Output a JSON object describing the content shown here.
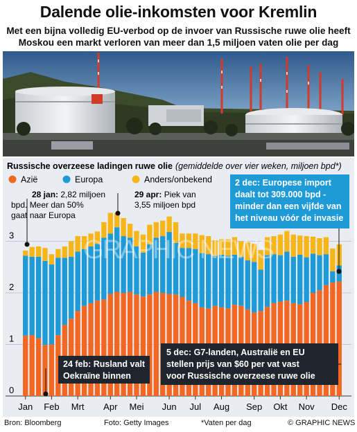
{
  "header": {
    "title": "Dalende olie-inkomsten voor Kremlin",
    "subtitle_line1": "Met een bijna volledig EU-verbod op de invoer van Russische ruwe olie heeft",
    "subtitle_line2": "Moskou een markt verloren van meer dan 1,5 miljoen vaten olie per dag"
  },
  "watermark": "GRAPHIC NEWS",
  "colors": {
    "asia": "#f26722",
    "europe": "#1e9ad6",
    "other": "#f7b618",
    "panel": "#e9ecf2",
    "callout": "#20242c"
  },
  "annotations": {
    "jan28_bold": "28 jan:",
    "jan28_l1": " 2,82 miljoen",
    "jan28_l2": "bpd. Meer dan 50%",
    "jan28_l3": "gaat naar Europa",
    "apr29_bold": "29 apr:",
    "apr29_l1": " Piek van",
    "apr29_l2": "3,55 miljoen bpd",
    "dec2_l1": "2 dec: Europese import",
    "dec2_l2": "daalt tot 309.000 bpd -",
    "dec2_l3": "minder dan een vijfde van",
    "dec2_l4": "het niveau vóór de invasie",
    "feb24_l1": "24 feb: Rusland valt",
    "feb24_l2": "Oekraïne binnen",
    "dec5_l1": "5 dec: G7-landen, Australië en EU",
    "dec5_l2": "stellen prijs van $60 per vat vast",
    "dec5_l3": "voor Russische overzeese ruwe olie"
  },
  "footer": {
    "source": "Bron: Bloomberg",
    "photo": "Foto: Getty Images",
    "note": "*Vaten per dag",
    "credit": "© GRAPHIC NEWS"
  },
  "chart_data": {
    "type": "bar",
    "stacked": true,
    "title": "Russische overzeese ladingen ruwe olie",
    "title_note": "(gemiddelde over vier weken, miljoen bpd*)",
    "legend_position": "top",
    "ylim": [
      0,
      4
    ],
    "y_ticks": [
      0,
      1,
      2,
      3
    ],
    "x_tick_labels": [
      "Jan",
      "Feb",
      "Mrt",
      "Apr",
      "Mei",
      "Jun",
      "Jul",
      "Aug",
      "Sep",
      "Okt",
      "Nov",
      "Dec"
    ],
    "x_tick_bar_index": [
      0,
      4,
      8,
      13,
      17,
      22,
      26,
      30,
      35,
      39,
      43,
      48
    ],
    "grid": true,
    "series": [
      {
        "name": "Azië",
        "color": "#f26722",
        "values": [
          1.17,
          1.18,
          1.12,
          0.99,
          1.0,
          1.18,
          1.38,
          1.5,
          1.65,
          1.75,
          1.8,
          1.85,
          1.87,
          1.98,
          2.02,
          2.0,
          2.02,
          1.97,
          1.93,
          1.97,
          2.02,
          2.0,
          1.98,
          1.97,
          1.92,
          1.85,
          1.8,
          1.72,
          1.7,
          1.75,
          1.72,
          1.7,
          1.77,
          1.75,
          1.68,
          1.62,
          1.65,
          1.73,
          1.8,
          1.83,
          1.85,
          1.8,
          1.78,
          1.82,
          2.0,
          2.05,
          2.15,
          2.2,
          2.22
        ]
      },
      {
        "name": "Europa",
        "color": "#1e9ad6",
        "values": [
          1.55,
          1.52,
          1.58,
          1.63,
          1.55,
          1.5,
          1.3,
          1.2,
          1.15,
          1.1,
          1.1,
          1.1,
          1.2,
          1.17,
          1.25,
          1.1,
          1.05,
          0.93,
          0.85,
          0.97,
          1.05,
          1.1,
          1.2,
          1.0,
          0.95,
          1.02,
          1.05,
          1.05,
          1.05,
          0.97,
          1.02,
          1.02,
          0.97,
          0.95,
          0.95,
          0.98,
          0.8,
          1.0,
          0.95,
          0.9,
          0.95,
          0.9,
          0.96,
          0.87,
          0.76,
          0.68,
          0.6,
          0.22,
          0.31
        ]
      },
      {
        "name": "Anders/onbekend",
        "color": "#f7b618",
        "values": [
          0.1,
          0.19,
          0.2,
          0.25,
          0.2,
          0.17,
          0.22,
          0.3,
          0.3,
          0.25,
          0.25,
          0.24,
          0.3,
          0.4,
          0.28,
          0.35,
          0.27,
          0.3,
          0.35,
          0.38,
          0.3,
          0.3,
          0.3,
          0.4,
          0.28,
          0.28,
          0.3,
          0.35,
          0.35,
          0.3,
          0.3,
          0.32,
          0.34,
          0.3,
          0.35,
          0.35,
          0.38,
          0.35,
          0.35,
          0.4,
          0.4,
          0.43,
          0.37,
          0.41,
          0.33,
          0.33,
          0.33,
          0.44,
          0.41
        ]
      }
    ]
  }
}
